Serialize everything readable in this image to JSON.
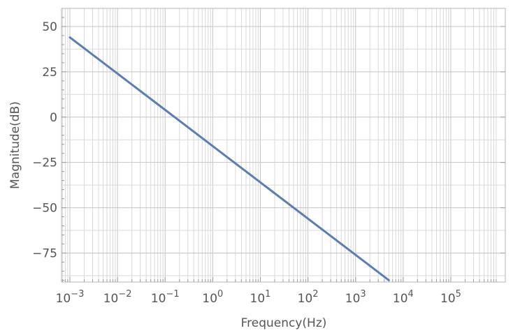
{
  "chart_data": {
    "type": "line",
    "title": "",
    "xlabel": "Frequency(Hz)",
    "ylabel": "Magnitude(dB)",
    "x_scale": "log",
    "xlim": [
      0.0006,
      1000000
    ],
    "ylim": [
      -91,
      60
    ],
    "x_ticks": [
      {
        "value": 0.001,
        "base": "10",
        "exp": "−3"
      },
      {
        "value": 0.01,
        "base": "10",
        "exp": "−2"
      },
      {
        "value": 0.1,
        "base": "10",
        "exp": "−1"
      },
      {
        "value": 1,
        "base": "10",
        "exp": "0"
      },
      {
        "value": 10,
        "base": "10",
        "exp": "1"
      },
      {
        "value": 100,
        "base": "10",
        "exp": "2"
      },
      {
        "value": 1000,
        "base": "10",
        "exp": "3"
      },
      {
        "value": 10000,
        "base": "10",
        "exp": "4"
      },
      {
        "value": 100000,
        "base": "10",
        "exp": "5"
      }
    ],
    "y_ticks": [
      {
        "value": 50,
        "label": "50"
      },
      {
        "value": 25,
        "label": "25"
      },
      {
        "value": 0,
        "label": "0"
      },
      {
        "value": -25,
        "label": "−25"
      },
      {
        "value": -50,
        "label": "−50"
      },
      {
        "value": -75,
        "label": "−75"
      }
    ],
    "grid": true,
    "series": [
      {
        "color": "#5a7eb3",
        "x": [
          0.001,
          0.01,
          0.1,
          1,
          10,
          100,
          1000,
          5000
        ],
        "y": [
          44,
          24,
          4,
          -16,
          -36,
          -56,
          -76,
          -90
        ]
      }
    ]
  }
}
